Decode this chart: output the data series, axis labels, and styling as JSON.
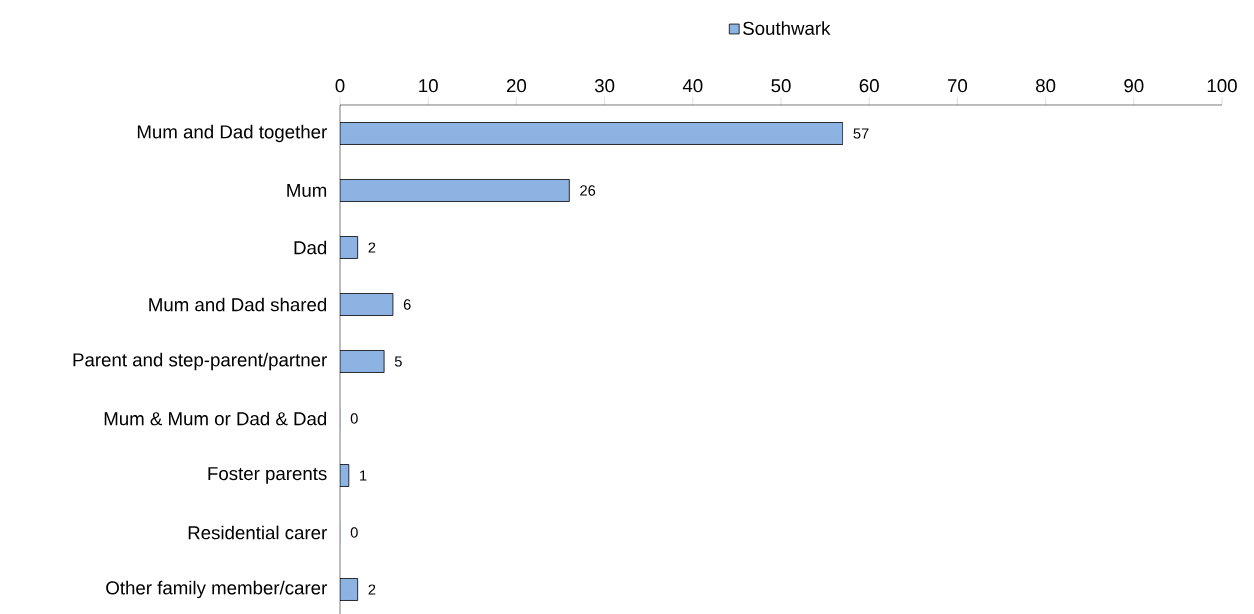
{
  "chart_data": {
    "type": "bar",
    "orientation": "horizontal",
    "categories": [
      "Mum and Dad together",
      "Mum",
      "Dad",
      "Mum and Dad shared",
      "Parent and step-parent/partner",
      "Mum & Mum or Dad & Dad",
      "Foster parents",
      "Residential carer",
      "Other family member/carer"
    ],
    "series": [
      {
        "name": "Southwark",
        "color": "#8db3e2",
        "values": [
          57,
          26,
          2,
          6,
          5,
          0,
          1,
          0,
          2
        ]
      }
    ],
    "xlim": [
      0,
      100
    ],
    "xticks": [
      0,
      10,
      20,
      30,
      40,
      50,
      60,
      70,
      80,
      90,
      100
    ],
    "data_labels": true,
    "legend": "top",
    "grid": false
  }
}
